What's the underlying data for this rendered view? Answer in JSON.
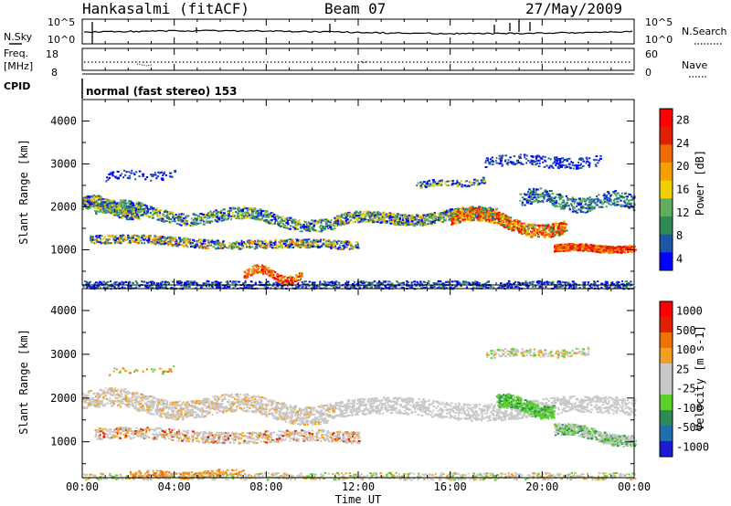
{
  "header": {
    "station": "Hankasalmi (fitACF)",
    "beam": "Beam 07",
    "date": "27/May/2009"
  },
  "top": {
    "nsky_label": "N.Sky",
    "nsearch_label": "N.Search",
    "freq_label_1": "Freq.",
    "freq_label_2": "[MHz]",
    "nave_label": "Nave",
    "cpid_label": "CPID",
    "cpid_value": "normal (fast stereo) 153",
    "noise_left_ticks": [
      "10^5",
      "10^0"
    ],
    "noise_right_ticks": [
      "10^5",
      "10^0"
    ],
    "freq_left_ticks": [
      "18",
      "8"
    ],
    "freq_right_ticks": [
      "60",
      "0"
    ]
  },
  "colors": {
    "power": [
      "#0000ff",
      "#1f55a5",
      "#2e8b57",
      "#5fae5f",
      "#f0d000",
      "#f6a000",
      "#f06a00",
      "#e02000",
      "#ff0000"
    ],
    "velocity": [
      "#1b1bd6",
      "#1f6fb0",
      "#2e8b57",
      "#5bd02a",
      "#c8c8c8",
      "#c8c8c8",
      "#f0a020",
      "#f07000",
      "#e02000",
      "#ff0000"
    ]
  },
  "chart_data": [
    {
      "type": "heatmap",
      "title": "Power",
      "ylabel": "Slant Range [km]",
      "colorbar_label": "Power [dB]",
      "colorbar_ticks": [
        "28",
        "24",
        "20",
        "16",
        "12",
        "8",
        "4"
      ],
      "xlim_hours": [
        0,
        24
      ],
      "ylim_km": [
        180,
        4500
      ],
      "yticks": [
        "4000",
        "3000",
        "2000",
        "1000"
      ],
      "ytick_values": [
        4000,
        3000,
        2000,
        1000
      ]
    },
    {
      "type": "heatmap",
      "title": "Velocity",
      "ylabel": "Slant Range [km]",
      "colorbar_label": "Velocity [m s-1]",
      "colorbar_ticks": [
        "1000",
        "500",
        "100",
        "25",
        "-25",
        "-100",
        "-500",
        "-1000"
      ],
      "xlim_hours": [
        0,
        24
      ],
      "ylim_km": [
        180,
        4500
      ],
      "yticks": [
        "4000",
        "3000",
        "2000",
        "1000"
      ],
      "ytick_values": [
        4000,
        3000,
        2000,
        1000
      ],
      "xticks": [
        "00:00",
        "04:00",
        "08:00",
        "12:00",
        "16:00",
        "20:00",
        "00:00"
      ],
      "xtick_values": [
        0,
        4,
        8,
        12,
        16,
        20,
        24
      ],
      "xlabel": "Time UT"
    }
  ]
}
